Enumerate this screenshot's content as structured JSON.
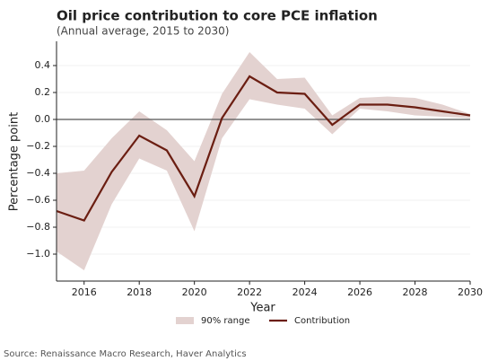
{
  "chart_data": {
    "type": "line",
    "title": "Oil price contribution to core PCE inflation",
    "subtitle": "(Annual average, 2015 to 2030)",
    "x_label": "Year",
    "y_label": "Percentage point",
    "source": "Source: Renaissance Macro Research, Haver Analytics",
    "x": [
      2015,
      2016,
      2017,
      2018,
      2019,
      2020,
      2021,
      2022,
      2023,
      2024,
      2025,
      2026,
      2027,
      2028,
      2029,
      2030
    ],
    "series": [
      {
        "name": "90% range",
        "color": "#e3d2d0",
        "lower": [
          -0.98,
          -1.12,
          -0.63,
          -0.29,
          -0.38,
          -0.83,
          -0.14,
          0.15,
          0.11,
          0.08,
          -0.11,
          0.08,
          0.06,
          0.03,
          0.02,
          0.01
        ],
        "upper": [
          -0.4,
          -0.38,
          -0.14,
          0.06,
          -0.08,
          -0.31,
          0.19,
          0.5,
          0.3,
          0.31,
          0.03,
          0.16,
          0.17,
          0.16,
          0.11,
          0.04
        ]
      },
      {
        "name": "Contribution",
        "color": "#6b1e12",
        "values": [
          -0.68,
          -0.75,
          -0.39,
          -0.12,
          -0.23,
          -0.57,
          0.01,
          0.32,
          0.2,
          0.19,
          -0.04,
          0.11,
          0.11,
          0.09,
          0.06,
          0.03
        ]
      }
    ],
    "xlim": [
      2015,
      2030
    ],
    "xticks": [
      2016,
      2018,
      2020,
      2022,
      2024,
      2026,
      2028,
      2030
    ],
    "ylim": [
      -1.2,
      0.58
    ],
    "yticks": [
      {
        "value": -1.0,
        "label": "−1.0"
      },
      {
        "value": -0.8,
        "label": "−0.8"
      },
      {
        "value": -0.6,
        "label": "−0.6"
      },
      {
        "value": -0.4,
        "label": "−0.4"
      },
      {
        "value": -0.2,
        "label": "−0.2"
      },
      {
        "value": 0.0,
        "label": "0.0"
      },
      {
        "value": 0.2,
        "label": "0.2"
      },
      {
        "value": 0.4,
        "label": "0.4"
      }
    ],
    "hline": 0,
    "grid": true,
    "legend": "bottom"
  }
}
